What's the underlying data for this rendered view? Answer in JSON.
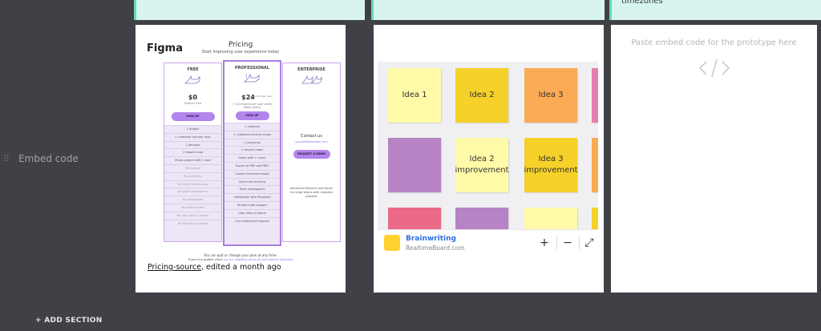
{
  "row": {
    "label": "Embed code",
    "grip": "⠿"
  },
  "add_section": "+ ADD SECTION",
  "top_cards": {
    "timezones_text": "timezones"
  },
  "figma_card": {
    "logo": "Figma",
    "title": "Pricing",
    "subtitle": "Start improving user experience today",
    "plans": [
      {
        "name": "FREE",
        "price": "$0",
        "note": "Forever free",
        "button": "SIGN UP",
        "features": [
          "1 project",
          "1 customer journey map",
          "1 persona",
          "1 impact map",
          "Share project with 1 user",
          "No export",
          "No branding",
          "No direct link sharing",
          "No team workspaces",
          "No integration",
          "No embed code",
          "No user roles & teams",
          "No technical support"
        ]
      },
      {
        "name": "PROFESSIONAL",
        "price": "$24",
        "price_unit": "/ month per user",
        "note": "+ $12/month per user when billed yearly",
        "button": "SIGN UP",
        "features": [
          "∞ projects",
          "∞ customer journey maps",
          "∞ personas",
          "∞ impact maps",
          "Share with ∞ users",
          "Export to PDF and PNG",
          "Custom branded export",
          "Direct link sharing",
          "Team workspaces",
          "Integration with Mixpanel",
          "Embed code support",
          "User roles & teams",
          "Live chat/email support"
        ]
      },
      {
        "name": "ENTERPRISE",
        "price": "Contact us",
        "email": "support@example.com",
        "button": "REQUEST A DEMO",
        "description": "Advanced features and terms for large teams with complex projects"
      }
    ],
    "footer_line1": "You can quit or change your plan at any time.",
    "footer_line2_prefix": "If you're a student check",
    "footer_line2_link": "out our eligibility terms for educational discounts",
    "caption_link": "Pricing-source",
    "caption_rest": ", edited a month ago"
  },
  "brainwriting_card": {
    "notes": [
      {
        "text": "Idea 1",
        "color": "#fffaa8"
      },
      {
        "text": "Idea 2",
        "color": "#f5d12a"
      },
      {
        "text": "Idea 3",
        "color": "#fbab55"
      },
      {
        "text": "",
        "color": "#e67fb0"
      },
      {
        "text": "",
        "color": "#b683c4"
      },
      {
        "text": "Idea 2 improvement",
        "color": "#fffaa8"
      },
      {
        "text": "Idea 3 improvement",
        "color": "#f5d12a"
      },
      {
        "text": "",
        "color": "#fbab55"
      },
      {
        "text": "",
        "color": "#ea6a88"
      },
      {
        "text": "",
        "color": "#b683c4"
      },
      {
        "text": "",
        "color": "#fffaa8"
      },
      {
        "text": "",
        "color": "#f5d12a"
      }
    ],
    "name": "Brainwriting",
    "host": "RealtimeBoard.com",
    "controls": [
      "+",
      "−",
      "⤢"
    ]
  },
  "embed_card": {
    "hint": "Paste embed code for the prototype here"
  },
  "colors": {
    "background": "#3f4146",
    "card_accent": "#66d9be",
    "card_tint": "#d7f5ee"
  }
}
